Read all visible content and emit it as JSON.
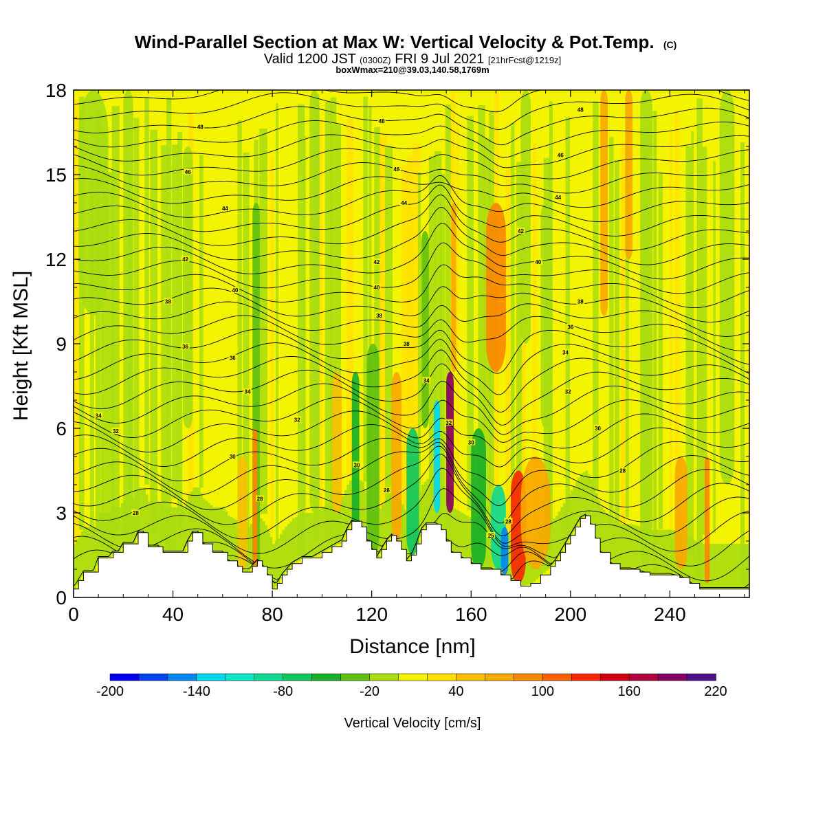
{
  "header": {
    "title_main": "Wind-Parallel Section at Max W: Vertical Velocity & Pot.Temp.",
    "title_mark": "(C)",
    "valid_prefix": "Valid 1200 JST",
    "valid_utc": "(0300Z)",
    "valid_date": "FRI 9 Jul 2021",
    "valid_fcst": "[21hrFcst@1219z]",
    "box_info": "boxWmax=210@39.03,140.58,1769m"
  },
  "chart_data": {
    "type": "heatmap",
    "xlabel": "Distance [nm]",
    "ylabel": "Height [Kft MSL]",
    "xlim": [
      0,
      272
    ],
    "ylim": [
      0,
      18
    ],
    "x_ticks": [
      "0",
      "40",
      "80",
      "120",
      "160",
      "200",
      "240"
    ],
    "x_tick_values": [
      0,
      40,
      80,
      120,
      160,
      200,
      240
    ],
    "y_ticks": [
      "0",
      "3",
      "6",
      "9",
      "12",
      "15",
      "18"
    ],
    "y_tick_values": [
      0,
      3,
      6,
      9,
      12,
      15,
      18
    ],
    "colorbar": {
      "label": "Vertical Velocity [cm/s]",
      "min": -200,
      "max": 220,
      "step": 20,
      "tick_labels": [
        "-200",
        "-140",
        "-80",
        "-20",
        "40",
        "100",
        "160",
        "220"
      ],
      "colors": [
        "#0000ee",
        "#0044f0",
        "#0088f0",
        "#00d8f0",
        "#10e4c8",
        "#10d890",
        "#10c860",
        "#18b028",
        "#60c010",
        "#a8dc10",
        "#f4f400",
        "#ffe000",
        "#f8c000",
        "#f8a800",
        "#f88800",
        "#f86000",
        "#f82800",
        "#d00010",
        "#b00040",
        "#880060",
        "#50108c"
      ]
    },
    "terrain_kft": [
      [
        0,
        0.3
      ],
      [
        2,
        0.6
      ],
      [
        4,
        0.9
      ],
      [
        8,
        0.9
      ],
      [
        10,
        1.4
      ],
      [
        14,
        1.4
      ],
      [
        16,
        1.6
      ],
      [
        18,
        1.6
      ],
      [
        20,
        1.9
      ],
      [
        24,
        1.9
      ],
      [
        26,
        2.3
      ],
      [
        28,
        2.3
      ],
      [
        30,
        1.8
      ],
      [
        34,
        1.8
      ],
      [
        36,
        1.6
      ],
      [
        40,
        1.6
      ],
      [
        44,
        1.6
      ],
      [
        46,
        2.0
      ],
      [
        48,
        2.3
      ],
      [
        50,
        2.3
      ],
      [
        52,
        1.9
      ],
      [
        56,
        1.6
      ],
      [
        60,
        1.6
      ],
      [
        62,
        1.3
      ],
      [
        66,
        1.1
      ],
      [
        68,
        0.9
      ],
      [
        70,
        0.9
      ],
      [
        72,
        1.1
      ],
      [
        74,
        1.3
      ],
      [
        76,
        1.1
      ],
      [
        78,
        0.8
      ],
      [
        80,
        0.3
      ],
      [
        82,
        0.5
      ],
      [
        84,
        0.8
      ],
      [
        86,
        1.0
      ],
      [
        88,
        1.2
      ],
      [
        92,
        1.4
      ],
      [
        96,
        1.4
      ],
      [
        100,
        1.6
      ],
      [
        104,
        1.8
      ],
      [
        108,
        2.0
      ],
      [
        110,
        2.4
      ],
      [
        112,
        2.7
      ],
      [
        116,
        2.5
      ],
      [
        118,
        2.0
      ],
      [
        120,
        1.7
      ],
      [
        122,
        1.4
      ],
      [
        124,
        1.7
      ],
      [
        126,
        2.0
      ],
      [
        128,
        2.2
      ],
      [
        130,
        2.0
      ],
      [
        132,
        1.7
      ],
      [
        134,
        1.3
      ],
      [
        136,
        1.5
      ],
      [
        138,
        1.9
      ],
      [
        140,
        2.4
      ],
      [
        142,
        2.6
      ],
      [
        146,
        2.6
      ],
      [
        148,
        2.4
      ],
      [
        150,
        2.0
      ],
      [
        152,
        1.6
      ],
      [
        156,
        1.4
      ],
      [
        160,
        1.2
      ],
      [
        164,
        1.0
      ],
      [
        168,
        1.0
      ],
      [
        172,
        0.8
      ],
      [
        176,
        0.6
      ],
      [
        180,
        0.4
      ],
      [
        184,
        0.5
      ],
      [
        188,
        0.8
      ],
      [
        192,
        1.1
      ],
      [
        194,
        1.3
      ],
      [
        196,
        1.6
      ],
      [
        198,
        1.9
      ],
      [
        200,
        2.2
      ],
      [
        202,
        2.5
      ],
      [
        204,
        2.8
      ],
      [
        206,
        2.9
      ],
      [
        208,
        2.6
      ],
      [
        210,
        2.1
      ],
      [
        212,
        1.6
      ],
      [
        216,
        1.2
      ],
      [
        220,
        1.0
      ],
      [
        224,
        1.0
      ],
      [
        228,
        0.9
      ],
      [
        232,
        0.8
      ],
      [
        236,
        0.8
      ],
      [
        240,
        0.8
      ],
      [
        244,
        0.7
      ],
      [
        248,
        0.5
      ],
      [
        252,
        0.3
      ],
      [
        256,
        0.3
      ],
      [
        272,
        0.3
      ]
    ],
    "wv_zones": [
      {
        "x": 2,
        "w": 12,
        "top": 18,
        "bot": 10,
        "v": -20
      },
      {
        "x": 20,
        "w": 4,
        "top": 18,
        "bot": 2,
        "v": -10
      },
      {
        "x": 44,
        "w": 4,
        "top": 16,
        "bot": 6,
        "v": -10
      },
      {
        "x": 72,
        "w": 3,
        "top": 14,
        "bot": 1,
        "v": -40
      },
      {
        "x": 72,
        "w": 2,
        "top": 6,
        "bot": 1,
        "v": 80
      },
      {
        "x": 66,
        "w": 4,
        "top": 5,
        "bot": 1,
        "v": 40
      },
      {
        "x": 95,
        "w": 4,
        "top": 18,
        "bot": 3,
        "v": -10
      },
      {
        "x": 104,
        "w": 4,
        "top": 8,
        "bot": 3,
        "v": 40
      },
      {
        "x": 112,
        "w": 3,
        "top": 8,
        "bot": 2,
        "v": -60
      },
      {
        "x": 118,
        "w": 5,
        "top": 9,
        "bot": 1.5,
        "v": -40
      },
      {
        "x": 128,
        "w": 4,
        "top": 8,
        "bot": 2,
        "v": 60
      },
      {
        "x": 134,
        "w": 5,
        "top": 6,
        "bot": 1.5,
        "v": -80
      },
      {
        "x": 140,
        "w": 3,
        "top": 13,
        "bot": 6,
        "v": -30
      },
      {
        "x": 145,
        "w": 2.5,
        "top": 7,
        "bot": 3,
        "v": -140
      },
      {
        "x": 150,
        "w": 3,
        "top": 8,
        "bot": 3,
        "v": 180
      },
      {
        "x": 152,
        "w": 2,
        "top": 14,
        "bot": 8,
        "v": 60
      },
      {
        "x": 160,
        "w": 6,
        "top": 6,
        "bot": 1,
        "v": -60
      },
      {
        "x": 168,
        "w": 6,
        "top": 4,
        "bot": 1,
        "v": -100
      },
      {
        "x": 172,
        "w": 3,
        "top": 2.5,
        "bot": 0.8,
        "v": -150
      },
      {
        "x": 166,
        "w": 8,
        "top": 14,
        "bot": 8,
        "v": 80
      },
      {
        "x": 176,
        "w": 6,
        "top": 4.5,
        "bot": 0.5,
        "v": 130
      },
      {
        "x": 180,
        "w": 12,
        "top": 5,
        "bot": 1,
        "v": 60
      },
      {
        "x": 180,
        "w": 4,
        "top": 18,
        "bot": 9,
        "v": -20
      },
      {
        "x": 188,
        "w": 4,
        "top": 14,
        "bot": 6,
        "v": -10
      },
      {
        "x": 212,
        "w": 3,
        "top": 18,
        "bot": 10,
        "v": 60
      },
      {
        "x": 222,
        "w": 3,
        "top": 18,
        "bot": 12,
        "v": 60
      },
      {
        "x": 228,
        "w": 5,
        "top": 18,
        "bot": 2,
        "v": -10
      },
      {
        "x": 242,
        "w": 5,
        "top": 5,
        "bot": 1,
        "v": 60
      },
      {
        "x": 254,
        "w": 2,
        "top": 5,
        "bot": 0.5,
        "v": 90
      },
      {
        "x": 260,
        "w": 6,
        "top": 18,
        "bot": 4,
        "v": -10
      }
    ],
    "theta_labels": [
      {
        "x": 10,
        "y": 6.45,
        "text": "34"
      },
      {
        "x": 17,
        "y": 5.9,
        "text": "32"
      },
      {
        "x": 25,
        "y": 3.0,
        "text": "28"
      },
      {
        "x": 38,
        "y": 10.5,
        "text": "38"
      },
      {
        "x": 45,
        "y": 8.9,
        "text": "36"
      },
      {
        "x": 45,
        "y": 12.0,
        "text": "42"
      },
      {
        "x": 46,
        "y": 15.1,
        "text": "46"
      },
      {
        "x": 51,
        "y": 16.7,
        "text": "48"
      },
      {
        "x": 61,
        "y": 13.8,
        "text": "44"
      },
      {
        "x": 64,
        "y": 8.5,
        "text": "36"
      },
      {
        "x": 65,
        "y": 10.9,
        "text": "40"
      },
      {
        "x": 64,
        "y": 5.0,
        "text": "30"
      },
      {
        "x": 70,
        "y": 7.3,
        "text": "34"
      },
      {
        "x": 75,
        "y": 3.5,
        "text": "28"
      },
      {
        "x": 90,
        "y": 6.3,
        "text": "32"
      },
      {
        "x": 114,
        "y": 4.7,
        "text": "30"
      },
      {
        "x": 126,
        "y": 3.8,
        "text": "28"
      },
      {
        "x": 122,
        "y": 11.9,
        "text": "42"
      },
      {
        "x": 122,
        "y": 11.0,
        "text": "40"
      },
      {
        "x": 123,
        "y": 10.0,
        "text": "38"
      },
      {
        "x": 124,
        "y": 16.9,
        "text": "48"
      },
      {
        "x": 130,
        "y": 15.2,
        "text": "46"
      },
      {
        "x": 133,
        "y": 14.0,
        "text": "44"
      },
      {
        "x": 134,
        "y": 9.0,
        "text": "38"
      },
      {
        "x": 142,
        "y": 7.7,
        "text": "34"
      },
      {
        "x": 151,
        "y": 6.2,
        "text": "32"
      },
      {
        "x": 160,
        "y": 5.5,
        "text": "30"
      },
      {
        "x": 168,
        "y": 2.2,
        "text": "25"
      },
      {
        "x": 175,
        "y": 2.7,
        "text": "28"
      },
      {
        "x": 180,
        "y": 13.0,
        "text": "42"
      },
      {
        "x": 187,
        "y": 11.9,
        "text": "40"
      },
      {
        "x": 196,
        "y": 15.7,
        "text": "46"
      },
      {
        "x": 195,
        "y": 14.2,
        "text": "44"
      },
      {
        "x": 204,
        "y": 17.3,
        "text": "48"
      },
      {
        "x": 204,
        "y": 10.5,
        "text": "38"
      },
      {
        "x": 200,
        "y": 9.6,
        "text": "36"
      },
      {
        "x": 198,
        "y": 8.7,
        "text": "34"
      },
      {
        "x": 199,
        "y": 7.3,
        "text": "32"
      },
      {
        "x": 211,
        "y": 6.0,
        "text": "30"
      },
      {
        "x": 221,
        "y": 4.5,
        "text": "28"
      }
    ]
  }
}
